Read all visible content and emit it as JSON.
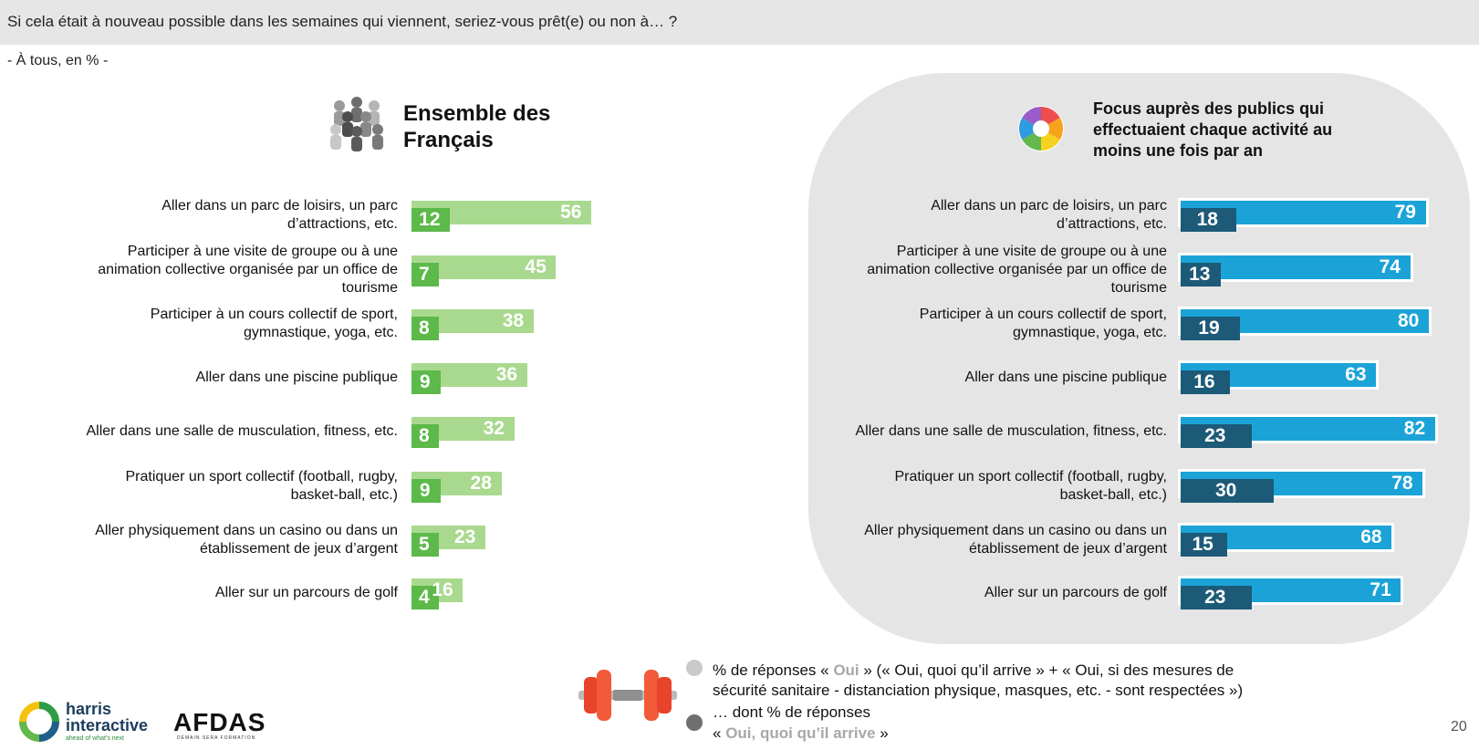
{
  "header": {
    "question": "Si cela était à nouveau possible dans les semaines qui viennent, seriez-vous prêt(e) ou non à… ?",
    "subtitle": "- À tous, en % -"
  },
  "left_title_line1": "Ensemble des",
  "left_title_line2": "Français",
  "right_title_line1": "Focus auprès des publics qui",
  "right_title_line2": "effectuaient chaque activité au",
  "right_title_line3": "moins une fois par an",
  "legend": {
    "line1_pre": "% de réponses « ",
    "line1_oui": "Oui",
    "line1_post": " » (« Oui, quoi qu’il arrive » + « Oui, si des mesures de",
    "line2": "sécurité sanitaire - distanciation physique, masques, etc. - sont respectées »)",
    "line3": "… dont % de réponses",
    "line4_pre": "« ",
    "line4_strong": "Oui, quoi qu’il arrive",
    "line4_post": " »"
  },
  "footer": {
    "page_number": "20",
    "harris_line1": "harris",
    "harris_line2": "interactive",
    "harris_tagline": "ahead of what's next",
    "afdas": "AFDAS",
    "afdas_tagline": "DEMAIN SERA FORMATION"
  },
  "colors": {
    "left_light": "#a9d98f",
    "left_dark": "#5cb94a",
    "right_light": "#1ba3d8",
    "right_dark": "#1c5a78",
    "panel_bg": "#e5e5e5",
    "topbar_bg": "#e6e6e6"
  },
  "icons": [
    "people-icon",
    "color-wheel-icon",
    "dumbbell-icon",
    "harris-logo-icon"
  ],
  "chart_data": [
    {
      "type": "bar",
      "orientation": "horizontal",
      "title": "Ensemble des Français",
      "categories": [
        [
          "Aller dans un parc de loisirs, un parc",
          "d’attractions, etc."
        ],
        [
          "Participer à une visite de groupe ou à une",
          "animation collective organisée par un office de",
          "tourisme"
        ],
        [
          "Participer à un cours collectif de sport,",
          "gymnastique, yoga, etc."
        ],
        [
          "Aller dans une piscine publique"
        ],
        [
          "Aller dans une salle de musculation, fitness, etc."
        ],
        [
          "Pratiquer un sport collectif (football, rugby,",
          "basket-ball, etc.)"
        ],
        [
          "Aller physiquement dans un casino ou dans un",
          "établissement de jeux d’argent"
        ],
        [
          "Aller sur un parcours de golf"
        ]
      ],
      "series": [
        {
          "name": "% de réponses « Oui »",
          "values": [
            56,
            45,
            38,
            36,
            32,
            28,
            23,
            16
          ]
        },
        {
          "name": "… dont % de réponses « Oui, quoi qu’il arrive »",
          "values": [
            12,
            7,
            8,
            9,
            8,
            9,
            5,
            4
          ]
        }
      ]
    },
    {
      "type": "bar",
      "orientation": "horizontal",
      "title": "Focus auprès des publics qui effectuaient chaque activité au moins une fois par an",
      "categories": [
        [
          "Aller dans un parc de loisirs, un parc",
          "d’attractions, etc."
        ],
        [
          "Participer à une visite de groupe ou à une",
          "animation collective organisée par un office de",
          "tourisme"
        ],
        [
          "Participer à un cours collectif de sport,",
          "gymnastique, yoga, etc."
        ],
        [
          "Aller dans une piscine publique"
        ],
        [
          "Aller dans une salle de musculation, fitness, etc."
        ],
        [
          "Pratiquer un sport collectif (football, rugby,",
          "basket-ball, etc.)"
        ],
        [
          "Aller physiquement dans un casino ou dans un",
          "établissement de jeux d’argent"
        ],
        [
          "Aller sur un parcours de golf"
        ]
      ],
      "series": [
        {
          "name": "% de réponses « Oui »",
          "values": [
            79,
            74,
            80,
            63,
            82,
            78,
            68,
            71
          ]
        },
        {
          "name": "… dont % de réponses « Oui, quoi qu’il arrive »",
          "values": [
            18,
            13,
            19,
            16,
            23,
            30,
            15,
            23
          ]
        }
      ]
    }
  ]
}
